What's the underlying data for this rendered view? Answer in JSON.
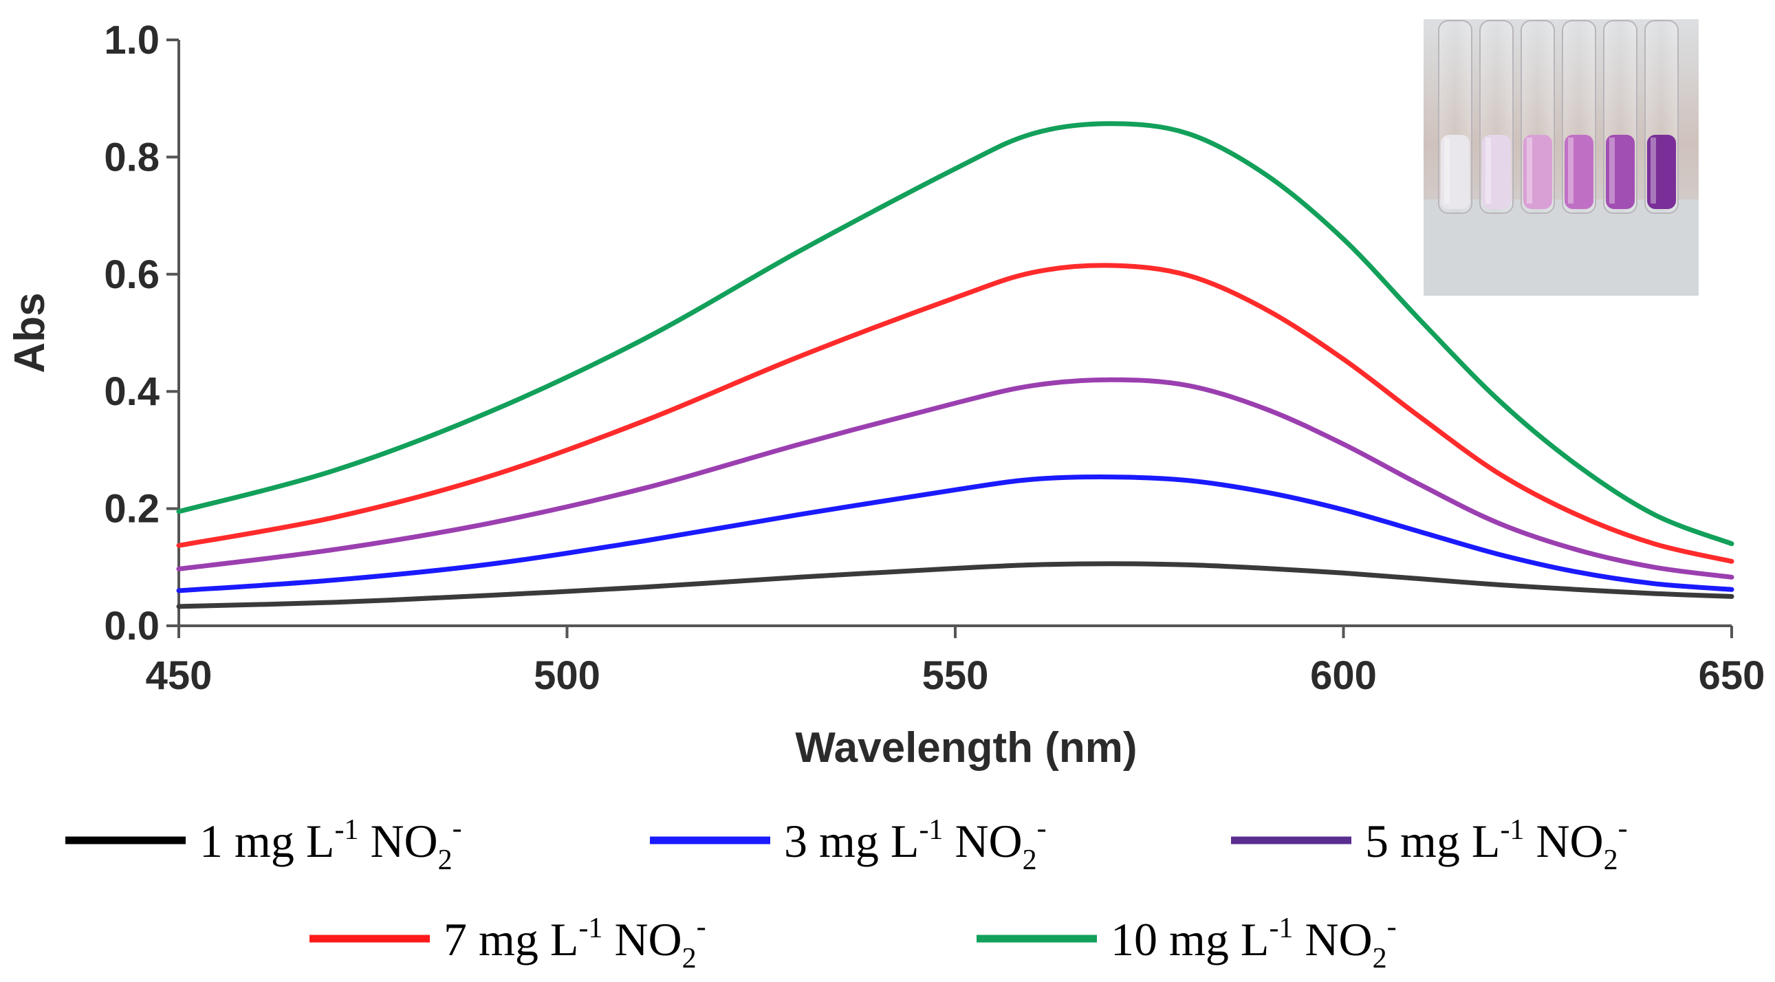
{
  "chart_data": {
    "type": "line",
    "title": "",
    "xlabel": "Wavelength (nm)",
    "ylabel": "Abs",
    "xlim": [
      450,
      650
    ],
    "ylim": [
      0.0,
      1.0
    ],
    "x_ticks": [
      "450",
      "500",
      "550",
      "600",
      "650"
    ],
    "y_ticks": [
      "0.0",
      "0.2",
      "0.4",
      "0.6",
      "0.8",
      "1.0"
    ],
    "grid": false,
    "legend_position": "bottom",
    "series": [
      {
        "name": "1 mg L-1 NO2-",
        "label_main": "1 mg L",
        "label_sup1": "-1",
        "label_mid": " NO",
        "label_sub": "2",
        "label_sup2": "-",
        "color": "#000000",
        "line_color": "#3a3a3a",
        "x": [
          450,
          470,
          490,
          510,
          530,
          550,
          560,
          570,
          580,
          590,
          600,
          610,
          620,
          630,
          640,
          650
        ],
        "y": [
          0.033,
          0.04,
          0.052,
          0.066,
          0.083,
          0.098,
          0.104,
          0.106,
          0.104,
          0.098,
          0.09,
          0.08,
          0.07,
          0.062,
          0.055,
          0.05
        ]
      },
      {
        "name": "3 mg L-1 NO2-",
        "label_main": "3 mg L",
        "label_sup1": "-1",
        "label_mid": " NO",
        "label_sub": "2",
        "label_sup2": "-",
        "color": "#1a1aff",
        "line_color": "#1a1aff",
        "x": [
          450,
          470,
          490,
          510,
          530,
          550,
          560,
          570,
          580,
          590,
          600,
          610,
          620,
          630,
          640,
          650
        ],
        "y": [
          0.06,
          0.078,
          0.105,
          0.145,
          0.19,
          0.232,
          0.25,
          0.254,
          0.248,
          0.228,
          0.198,
          0.16,
          0.122,
          0.092,
          0.072,
          0.062
        ]
      },
      {
        "name": "5 mg L-1 NO2-",
        "label_main": "5 mg L",
        "label_sup1": "-1",
        "label_mid": " NO",
        "label_sub": "2",
        "label_sup2": "-",
        "color": "#5a2d91",
        "line_color": "#9b3fb0",
        "x": [
          450,
          470,
          490,
          510,
          530,
          550,
          560,
          570,
          580,
          590,
          600,
          610,
          620,
          630,
          640,
          650
        ],
        "y": [
          0.097,
          0.13,
          0.175,
          0.235,
          0.31,
          0.38,
          0.41,
          0.42,
          0.41,
          0.37,
          0.31,
          0.24,
          0.175,
          0.13,
          0.1,
          0.083
        ]
      },
      {
        "name": "7 mg L-1 NO2-",
        "label_main": "7 mg L",
        "label_sup1": "-1",
        "label_mid": " NO",
        "label_sub": "2",
        "label_sup2": "-",
        "color": "#ff1a1a",
        "line_color": "#ff2b2b",
        "x": [
          450,
          470,
          490,
          510,
          530,
          550,
          560,
          570,
          580,
          590,
          600,
          610,
          620,
          630,
          640,
          650
        ],
        "y": [
          0.137,
          0.185,
          0.255,
          0.35,
          0.46,
          0.56,
          0.603,
          0.615,
          0.598,
          0.54,
          0.455,
          0.355,
          0.26,
          0.19,
          0.14,
          0.11
        ]
      },
      {
        "name": "10 mg L-1 NO2-",
        "label_main": "10 mg L",
        "label_sup1": "-1",
        "label_mid": " NO",
        "label_sub": "2",
        "label_sup2": "-",
        "color": "#12a05a",
        "line_color": "#12a05a",
        "x": [
          450,
          470,
          490,
          510,
          530,
          550,
          560,
          570,
          580,
          590,
          600,
          610,
          620,
          630,
          640,
          650
        ],
        "y": [
          0.195,
          0.265,
          0.365,
          0.49,
          0.64,
          0.78,
          0.84,
          0.857,
          0.84,
          0.77,
          0.66,
          0.52,
          0.385,
          0.275,
          0.19,
          0.14
        ]
      }
    ]
  },
  "inset_photo": {
    "description_icon": "test-tubes-photo",
    "liquid_colors": [
      "#e9e6ec",
      "#e6d6ea",
      "#d9a0d6",
      "#c070c4",
      "#a24fb3",
      "#7a2f98"
    ]
  }
}
